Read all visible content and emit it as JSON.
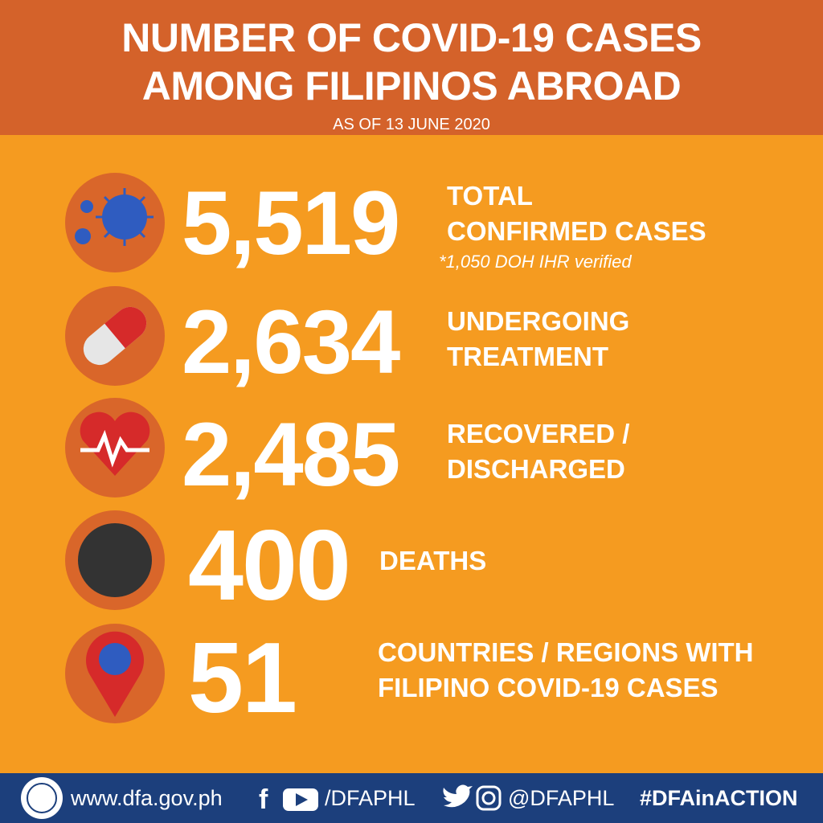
{
  "header": {
    "title_lines": [
      "NUMBER OF COVID-19 CASES",
      "AMONG FILIPINOS ABROAD"
    ],
    "subtitle": "AS OF 13 JUNE 2020"
  },
  "stats": [
    {
      "value": "5,519",
      "label_lines": [
        "TOTAL",
        "CONFIRMED CASES"
      ],
      "note": "*1,050 DOH IHR verified"
    },
    {
      "value": "2,634",
      "label_lines": [
        "UNDERGOING",
        "TREATMENT"
      ]
    },
    {
      "value": "2,485",
      "label_lines": [
        "RECOVERED /",
        "DISCHARGED"
      ]
    },
    {
      "value": "400",
      "label_lines": [
        "DEATHS"
      ]
    },
    {
      "value": "51",
      "label_lines": [
        "COUNTRIES / REGIONS WITH",
        "FILIPINO COVID-19 CASES"
      ]
    }
  ],
  "footer": {
    "website": "www.dfa.gov.ph",
    "facebook_youtube": "/DFAPHL",
    "twitter_instagram": "@DFAPHL",
    "hashtag": "#DFAinACTION"
  }
}
